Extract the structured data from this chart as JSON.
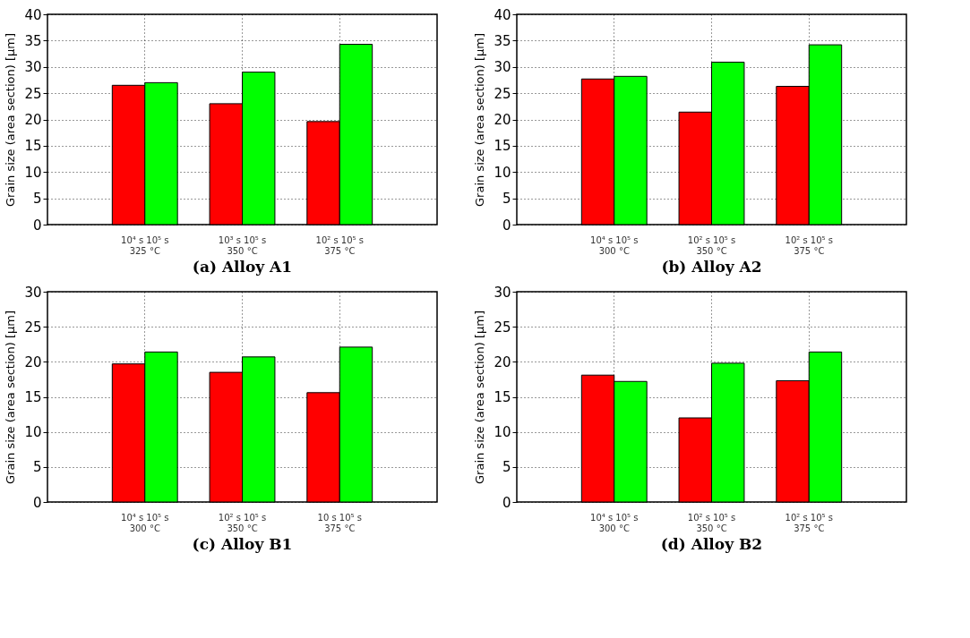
{
  "chart_data": [
    {
      "type": "bar",
      "title": "(a) Alloy A1",
      "ylabel": "Grain size (area section) [µm]",
      "categories": [
        "10⁴ s 10⁵ s\n325 °C",
        "10³ s 10⁵ s\n350 °C",
        "10² s 10⁵ s\n375 °C"
      ],
      "series": [
        {
          "color": "#ff0000",
          "values": [
            26.5,
            23.0,
            19.6
          ]
        },
        {
          "color": "#00ff00",
          "values": [
            27.0,
            29.0,
            34.3
          ]
        }
      ],
      "ylim": [
        0,
        40
      ],
      "yticks": [
        0,
        5,
        10,
        15,
        20,
        25,
        30,
        35,
        40
      ],
      "grid": true
    },
    {
      "type": "bar",
      "title": "(b) Alloy A2",
      "ylabel": "Grain size (area section) [µm]",
      "categories": [
        "10⁴ s 10⁵ s\n300 °C",
        "10² s 10⁵ s\n350 °C",
        "10² s 10⁵ s\n375 °C"
      ],
      "series": [
        {
          "color": "#ff0000",
          "values": [
            27.7,
            21.4,
            26.3
          ]
        },
        {
          "color": "#00ff00",
          "values": [
            28.2,
            30.9,
            34.2
          ]
        }
      ],
      "ylim": [
        0,
        40
      ],
      "yticks": [
        0,
        5,
        10,
        15,
        20,
        25,
        30,
        35,
        40
      ],
      "grid": true
    },
    {
      "type": "bar",
      "title": "(c) Alloy B1",
      "ylabel": "Grain size (area section) [µm]",
      "categories": [
        "10⁴ s 10⁵ s\n300 °C",
        "10² s 10⁵ s\n350 °C",
        "10   s 10⁵ s\n375 °C"
      ],
      "series": [
        {
          "color": "#ff0000",
          "values": [
            19.7,
            18.5,
            15.6
          ]
        },
        {
          "color": "#00ff00",
          "values": [
            21.4,
            20.7,
            22.1
          ]
        }
      ],
      "ylim": [
        0,
        30
      ],
      "yticks": [
        0,
        5,
        10,
        15,
        20,
        25,
        30
      ],
      "grid": true
    },
    {
      "type": "bar",
      "title": "(d) Alloy B2",
      "ylabel": "Grain size (area section) [µm]",
      "categories": [
        "10⁴ s 10⁵ s\n300 °C",
        "10² s 10⁵ s\n350 °C",
        "10² s 10⁵ s\n375 °C"
      ],
      "series": [
        {
          "color": "#ff0000",
          "values": [
            18.1,
            12.0,
            17.3
          ]
        },
        {
          "color": "#00ff00",
          "values": [
            17.2,
            19.8,
            21.4
          ]
        }
      ],
      "ylim": [
        0,
        30
      ],
      "yticks": [
        0,
        5,
        10,
        15,
        20,
        25,
        30
      ],
      "grid": true
    }
  ]
}
